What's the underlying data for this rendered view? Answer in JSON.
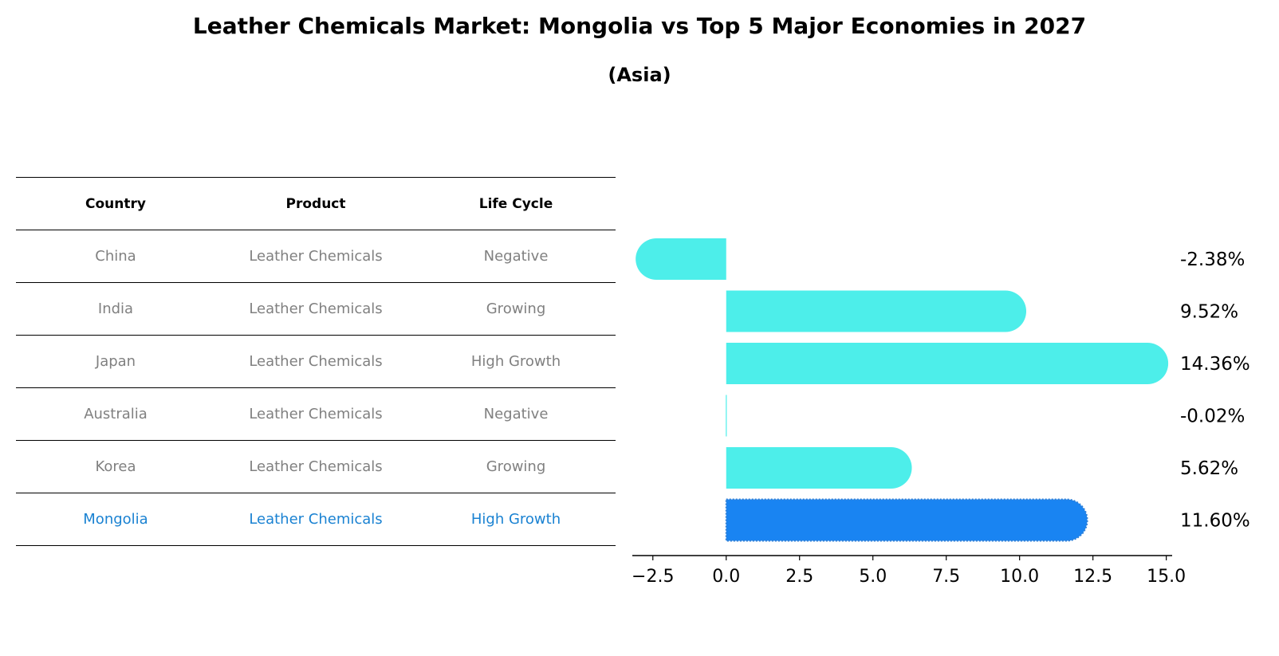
{
  "title": "Leather Chemicals Market: Mongolia vs Top 5 Major Economies in 2027",
  "subtitle": "(Asia)",
  "table": {
    "headers": [
      "Country",
      "Product",
      "Life Cycle"
    ],
    "rows": [
      {
        "country": "China",
        "product": "Leather Chemicals",
        "life_cycle": "Negative",
        "highlight": false
      },
      {
        "country": "India",
        "product": "Leather Chemicals",
        "life_cycle": "Growing",
        "highlight": false
      },
      {
        "country": "Japan",
        "product": "Leather Chemicals",
        "life_cycle": "High Growth",
        "highlight": false
      },
      {
        "country": "Australia",
        "product": "Leather Chemicals",
        "life_cycle": "Negative",
        "highlight": false
      },
      {
        "country": "Korea",
        "product": "Leather Chemicals",
        "life_cycle": "Growing",
        "highlight": false
      },
      {
        "country": "Mongolia",
        "product": "Leather Chemicals",
        "life_cycle": "High Growth",
        "highlight": true
      }
    ]
  },
  "colors": {
    "bar": "#4deeea",
    "highlight": "#1984f2",
    "muted_text": "#808080",
    "highlight_text": "#1a82d2"
  },
  "chart_data": {
    "type": "bar",
    "orientation": "horizontal",
    "categories": [
      "China",
      "India",
      "Japan",
      "Australia",
      "Korea",
      "Mongolia"
    ],
    "values": [
      -2.38,
      9.52,
      14.36,
      -0.02,
      5.62,
      11.6
    ],
    "value_labels": [
      "-2.38%",
      "9.52%",
      "14.36%",
      "-0.02%",
      "5.62%",
      "11.60%"
    ],
    "highlight_index": 5,
    "xlim": [
      -3.2,
      15.2
    ],
    "xticks": [
      -2.5,
      0.0,
      2.5,
      5.0,
      7.5,
      10.0,
      12.5,
      15.0
    ],
    "xtick_labels": [
      "−2.5",
      "0.0",
      "2.5",
      "5.0",
      "7.5",
      "10.0",
      "12.5",
      "15.0"
    ],
    "grid": false,
    "legend": "none"
  }
}
